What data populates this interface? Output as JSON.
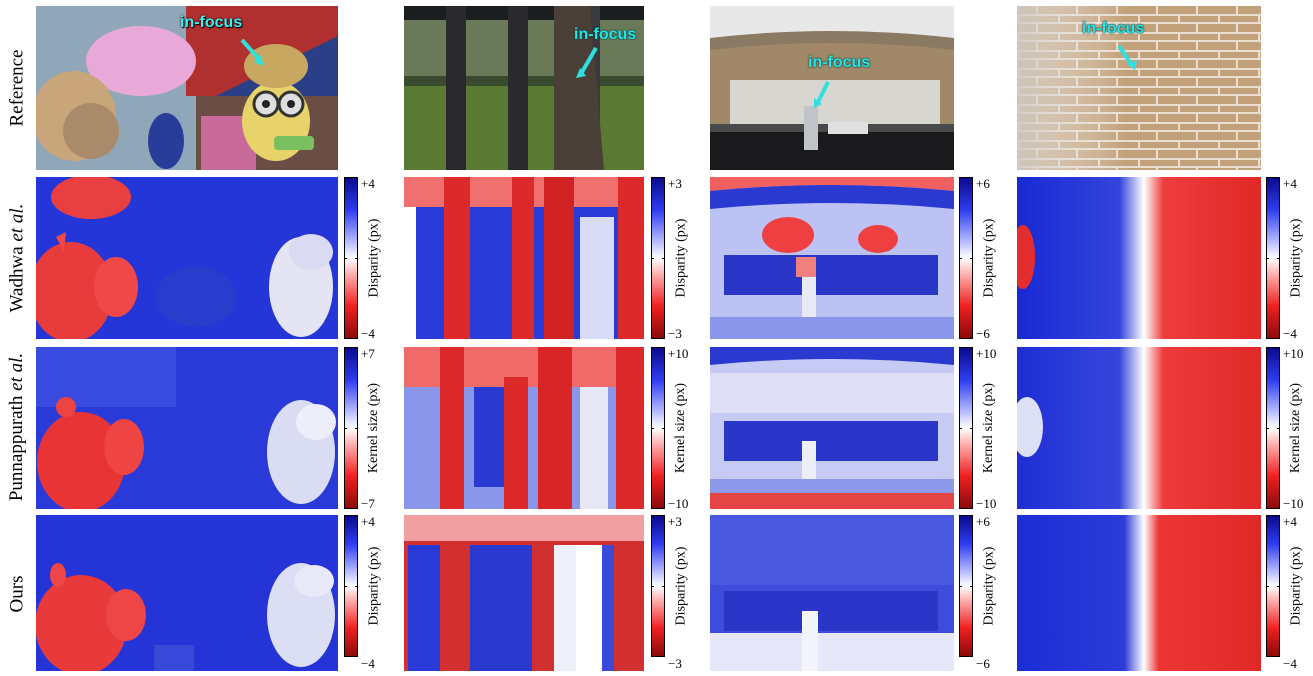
{
  "row_labels": {
    "reference": "Reference",
    "wadhwa_name": "Wadhwa ",
    "wadhwa_etal": "et al.",
    "punnappurath_name": "Punnappurath ",
    "punnappurath_etal": "et al.",
    "ours": "Ours"
  },
  "annotations": {
    "in_focus": "in-focus"
  },
  "colorbars": {
    "wadhwa": [
      {
        "max": "+4",
        "min": "−4",
        "label": "Disparity (px)"
      },
      {
        "max": "+3",
        "min": "−3",
        "label": "Disparity (px)"
      },
      {
        "max": "+6",
        "min": "−6",
        "label": "Disparity (px)"
      },
      {
        "max": "+4",
        "min": "−4",
        "label": "Disparity (px)"
      }
    ],
    "punnappurath": [
      {
        "max": "+7",
        "min": "−7",
        "label": "Kernel size (px)"
      },
      {
        "max": "+10",
        "min": "−10",
        "label": "Kernel size (px)"
      },
      {
        "max": "+10",
        "min": "−10",
        "label": "Kernel size (px)"
      },
      {
        "max": "+10",
        "min": "−10",
        "label": "Kernel size (px)"
      }
    ],
    "ours": [
      {
        "max": "+4",
        "min": "−4",
        "label": "Disparity (px)"
      },
      {
        "max": "+3",
        "min": "−3",
        "label": "Disparity (px)"
      },
      {
        "max": "+6",
        "min": "−6",
        "label": "Disparity (px)"
      },
      {
        "max": "+4",
        "min": "−4",
        "label": "Disparity (px)"
      }
    ]
  },
  "colormap": {
    "positive": "#0a0a8c",
    "zero": "#ffffff",
    "negative": "#8c0a0a",
    "annotation": "#22e6e6"
  }
}
